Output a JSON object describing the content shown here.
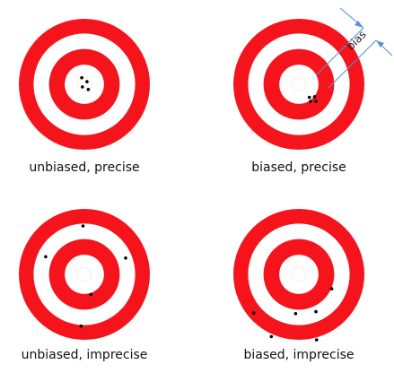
{
  "colors": {
    "ring_red": "#f5141c",
    "ring_white": "#ffffff",
    "shot": "#000000",
    "arrow": "#5b8fd6",
    "text": "#111111"
  },
  "annotation": {
    "bias_label": "bias"
  },
  "targets": [
    {
      "id": "unbiased-precise",
      "caption": "unbiased, precise",
      "shots": [
        [
          -0.04,
          -0.1
        ],
        [
          0.04,
          -0.04
        ],
        [
          -0.03,
          0.04
        ],
        [
          0.06,
          0.08
        ]
      ]
    },
    {
      "id": "biased-precise",
      "caption": "biased, precise",
      "shots": [
        [
          0.16,
          0.2
        ],
        [
          0.24,
          0.19
        ],
        [
          0.18,
          0.26
        ],
        [
          0.26,
          0.26
        ]
      ]
    },
    {
      "id": "unbiased-imprecise",
      "caption": "unbiased, imprecise",
      "shots": [
        [
          -0.02,
          -0.74
        ],
        [
          -0.59,
          -0.27
        ],
        [
          0.63,
          -0.25
        ],
        [
          0.1,
          0.31
        ],
        [
          -0.05,
          0.79
        ]
      ]
    },
    {
      "id": "biased-imprecise",
      "caption": "biased, imprecise",
      "shots": [
        [
          0.5,
          0.22
        ],
        [
          -0.69,
          0.59
        ],
        [
          -0.05,
          0.6
        ],
        [
          0.26,
          0.57
        ],
        [
          -0.42,
          0.95
        ],
        [
          0.27,
          1.0
        ]
      ]
    }
  ]
}
